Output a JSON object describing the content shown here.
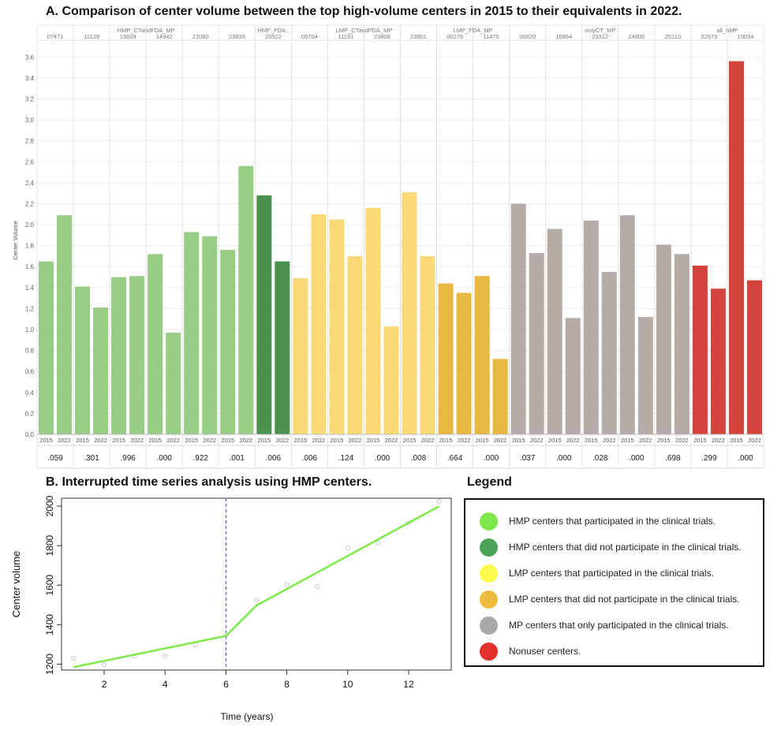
{
  "panel_a": {
    "title": "A. Comparison of center volume between the top high-volume centers in 2015 to their equivalents in 2022."
  },
  "panel_b": {
    "title": "B. Interrupted time series analysis using HMP centers."
  },
  "legend": {
    "title": "Legend",
    "items": [
      {
        "label": "HMP centers that participated in the clinical trials.",
        "color": "#7ee84b"
      },
      {
        "label": "HMP centers that did not participate in the clinical trials.",
        "color": "#4aa356"
      },
      {
        "label": "LMP centers that participated in the clinical trials.",
        "color": "#fbfb4b"
      },
      {
        "label": "LMP centers that did not participate in the clinical trials.",
        "color": "#eebb3f"
      },
      {
        "label": "MP centers that only participated in the clinical trials.",
        "color": "#a8a8a8"
      },
      {
        "label": "Nonuser centers.",
        "color": "#e2302a"
      }
    ]
  },
  "chart_data": [
    {
      "type": "bar",
      "ylabel": "Center Volume",
      "ylim": [
        0,
        3.7
      ],
      "yticks": [
        "0.0",
        "0.2",
        "0.4",
        "0.6",
        "0.8",
        "1.0",
        "1.2",
        "1.4",
        "1.6",
        "1.8",
        "2.0",
        "2.2",
        "2.4",
        "2.6",
        "2.8",
        "3.0",
        "3.2",
        "3.4",
        "3.6"
      ],
      "years": [
        "2015",
        "2022"
      ],
      "grid": true,
      "groups": [
        {
          "name": "HMP_CTandFDA_MP",
          "color": "#98cd85",
          "centers": [
            {
              "id": "07471",
              "values": [
                1.65,
                2.09
              ],
              "p": ".059"
            },
            {
              "id": "11129",
              "values": [
                1.41,
                1.21
              ],
              "p": ".301"
            },
            {
              "id": "13609",
              "values": [
                1.5,
                1.51
              ],
              "p": ".996"
            },
            {
              "id": "14942",
              "values": [
                1.72,
                0.97
              ],
              "p": ".000"
            },
            {
              "id": "21080",
              "values": [
                1.93,
                1.89
              ],
              "p": ".922"
            },
            {
              "id": "23839",
              "values": [
                1.76,
                2.56
              ],
              "p": ".001"
            }
          ]
        },
        {
          "name": "HMP_FDA..",
          "color": "#4b924e",
          "centers": [
            {
              "id": "20522",
              "values": [
                2.28,
                1.65
              ],
              "p": ".006"
            }
          ]
        },
        {
          "name": "LMP_CTandFDA_MP",
          "color": "#f9d977",
          "centers": [
            {
              "id": "05704",
              "values": [
                1.49,
                2.1
              ],
              "p": ".006"
            },
            {
              "id": "11191",
              "values": [
                2.05,
                1.7
              ],
              "p": ".124"
            },
            {
              "id": "23808",
              "values": [
                2.16,
                1.03
              ],
              "p": ".000"
            },
            {
              "id": "23901",
              "values": [
                2.31,
                1.7
              ],
              "p": ".008"
            }
          ]
        },
        {
          "name": "LMP_FDA_MP",
          "color": "#e8b941",
          "centers": [
            {
              "id": "00279",
              "values": [
                1.44,
                1.35
              ],
              "p": ".664"
            },
            {
              "id": "11470",
              "values": [
                1.51,
                0.72
              ],
              "p": ".000"
            }
          ]
        },
        {
          "name": "onlyCT_MP",
          "color": "#b6aca7",
          "centers": [
            {
              "id": "06820",
              "values": [
                2.2,
                1.73
              ],
              "p": ".037"
            },
            {
              "id": "16864",
              "values": [
                1.96,
                1.11
              ],
              "p": ".000"
            },
            {
              "id": "23312",
              "values": [
                2.04,
                1.55
              ],
              "p": ".028"
            },
            {
              "id": "24800",
              "values": [
                2.09,
                1.12
              ],
              "p": ".000"
            },
            {
              "id": "25110",
              "values": [
                1.81,
                1.72
              ],
              "p": ".698"
            }
          ]
        },
        {
          "name": "all_nMP",
          "color": "#d4443c",
          "centers": [
            {
              "id": "02573",
              "values": [
                1.61,
                1.39
              ],
              "p": ".299"
            },
            {
              "id": "19034",
              "values": [
                3.56,
                1.47
              ],
              "p": ".000"
            }
          ]
        }
      ]
    },
    {
      "type": "scatter",
      "xlabel": "Time (years)",
      "ylabel": "Center volume",
      "xlim": [
        0.6,
        13.4
      ],
      "ylim": [
        1170,
        2040
      ],
      "xticks": [
        2,
        4,
        6,
        8,
        10,
        12
      ],
      "yticks": [
        1200,
        1400,
        1600,
        1800,
        2000
      ],
      "interruption_x": 6,
      "points": {
        "x": [
          1,
          2,
          3,
          4,
          5,
          6,
          7,
          8,
          9,
          10,
          11,
          12,
          13
        ],
        "y": [
          1230,
          1197,
          1240,
          1240,
          1297,
          1345,
          1525,
          1604,
          1593,
          1788,
          1814,
          1915,
          2023
        ]
      },
      "fit": {
        "x": [
          1,
          6,
          7,
          13
        ],
        "y": [
          1185,
          1343,
          1497,
          1999
        ]
      },
      "fit_color": "#7ee84b"
    }
  ]
}
